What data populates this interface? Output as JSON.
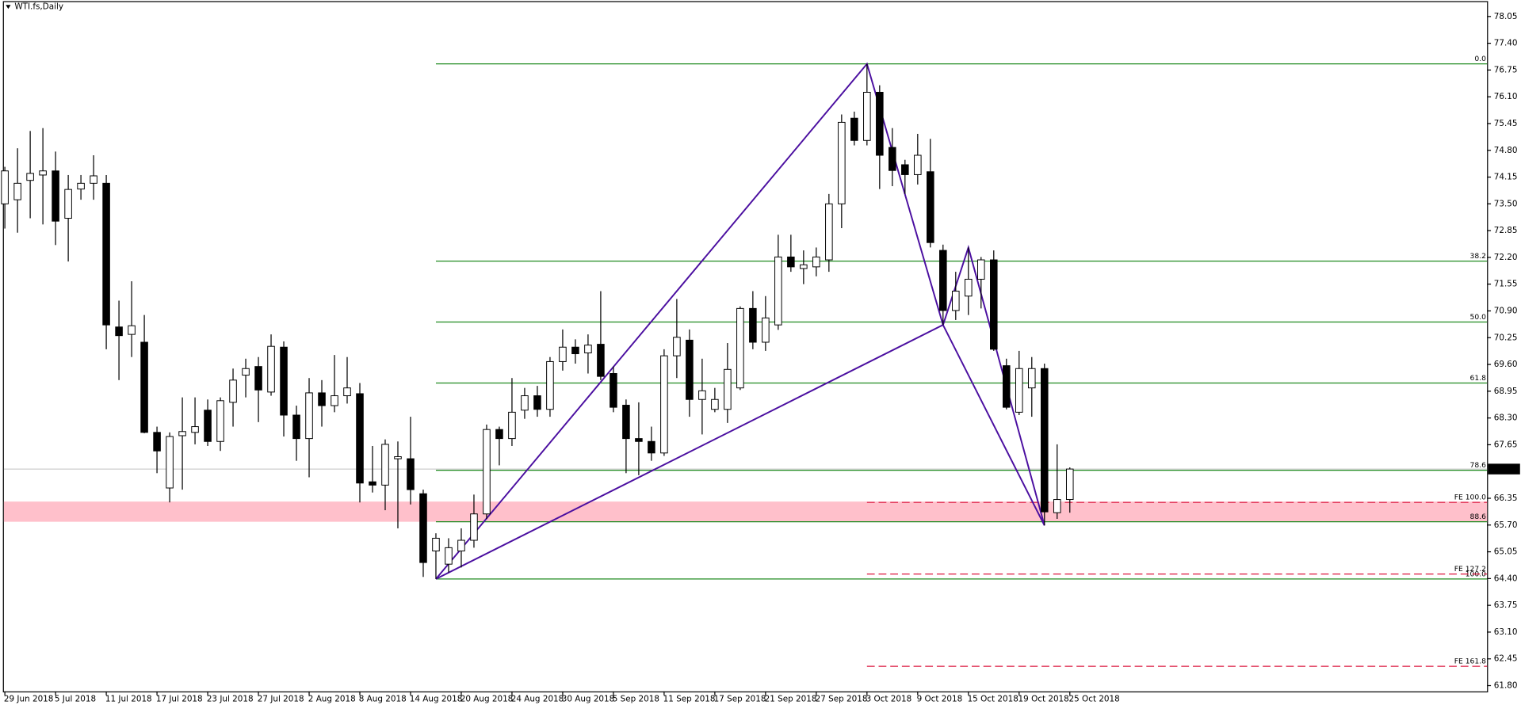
{
  "chart_data": {
    "type": "candlestick",
    "title": "WTI.fs,Daily",
    "categories": [
      "29 Jun 2018",
      null,
      null,
      null,
      "5 Jul 2018",
      null,
      null,
      null,
      "11 Jul 2018",
      null,
      null,
      null,
      "17 Jul 2018",
      null,
      null,
      null,
      "23 Jul 2018",
      null,
      null,
      null,
      "27 Jul 2018",
      null,
      null,
      null,
      "2 Aug 2018",
      null,
      null,
      null,
      "8 Aug 2018",
      null,
      null,
      null,
      "14 Aug 2018",
      null,
      null,
      null,
      "20 Aug 2018",
      null,
      null,
      null,
      "24 Aug 2018",
      null,
      null,
      null,
      "30 Aug 2018",
      null,
      null,
      null,
      "5 Sep 2018",
      null,
      null,
      null,
      "11 Sep 2018",
      null,
      null,
      null,
      "17 Sep 2018",
      null,
      null,
      null,
      "21 Sep 2018",
      null,
      null,
      null,
      "27 Sep 2018",
      null,
      null,
      null,
      "3 Oct 2018",
      null,
      null,
      null,
      "9 Oct 2018",
      null,
      null,
      null,
      "15 Oct 2018",
      null,
      null,
      null,
      "19 Oct 2018",
      null,
      null,
      null,
      "25 Oct 2018"
    ],
    "open": [
      73.5,
      73.6,
      74.07,
      74.2,
      74.3,
      73.15,
      73.86,
      74.0,
      74.0,
      70.51,
      70.33,
      70.14,
      67.95,
      66.6,
      67.87,
      67.95,
      68.49,
      67.73,
      68.68,
      69.34,
      69.55,
      68.93,
      70.02,
      68.37,
      67.8,
      68.91,
      68.6,
      68.84,
      68.89,
      66.75,
      66.67,
      67.31,
      67.31,
      66.46,
      65.07,
      64.75,
      65.07,
      65.33,
      65.97,
      68.02,
      67.8,
      68.49,
      68.84,
      68.51,
      69.67,
      70.02,
      69.88,
      70.09,
      69.38,
      68.61,
      67.8,
      67.73,
      67.45,
      69.81,
      70.19,
      68.75,
      68.51,
      68.51,
      69.03,
      70.96,
      70.14,
      70.56,
      72.21,
      71.93,
      71.97,
      72.14,
      73.5,
      75.58,
      75.04,
      76.21,
      74.87,
      74.45,
      74.21,
      74.28,
      72.37,
      70.91,
      71.26,
      71.67,
      72.14,
      69.57,
      68.44,
      69.03,
      69.5,
      66.0,
      66.32
    ],
    "high": [
      74.4,
      74.85,
      75.27,
      75.34,
      74.77,
      74.2,
      74.2,
      74.68,
      74.2,
      71.15,
      71.62,
      70.8,
      68.09,
      67.95,
      68.8,
      68.8,
      68.75,
      68.8,
      69.5,
      69.74,
      69.78,
      70.33,
      70.16,
      68.6,
      69.27,
      69.22,
      69.83,
      69.78,
      69.15,
      67.62,
      67.78,
      67.73,
      68.33,
      66.56,
      65.5,
      65.38,
      65.62,
      66.44,
      68.14,
      68.09,
      69.27,
      69.03,
      69.08,
      69.78,
      70.45,
      70.21,
      70.33,
      71.38,
      69.55,
      68.75,
      68.68,
      68.09,
      69.97,
      71.19,
      70.45,
      69.74,
      69.03,
      70.12,
      71.01,
      71.38,
      71.26,
      72.75,
      72.75,
      72.37,
      72.44,
      73.74,
      75.67,
      75.74,
      76.9,
      76.38,
      75.34,
      74.57,
      75.2,
      75.08,
      72.51,
      71.85,
      72.44,
      72.21,
      72.37,
      69.74,
      69.93,
      69.78,
      69.62,
      67.66,
      67.1
    ],
    "low": [
      72.9,
      72.8,
      73.15,
      73.0,
      72.5,
      72.1,
      73.6,
      73.6,
      69.97,
      69.22,
      69.78,
      67.93,
      66.96,
      66.25,
      66.56,
      67.66,
      67.62,
      67.5,
      68.09,
      68.8,
      68.2,
      68.84,
      67.85,
      67.26,
      66.86,
      68.09,
      68.44,
      68.65,
      66.25,
      66.49,
      66.06,
      65.62,
      66.2,
      64.44,
      64.39,
      64.55,
      64.67,
      65.15,
      65.85,
      67.15,
      67.62,
      68.28,
      68.33,
      68.33,
      69.45,
      69.62,
      69.38,
      69.22,
      68.44,
      66.96,
      66.91,
      67.26,
      67.38,
      69.27,
      68.33,
      67.9,
      68.44,
      68.18,
      68.98,
      69.97,
      69.93,
      70.44,
      71.85,
      71.55,
      71.74,
      71.85,
      72.91,
      74.92,
      74.92,
      73.86,
      73.93,
      73.74,
      73.97,
      72.44,
      70.56,
      70.68,
      70.8,
      70.96,
      69.93,
      68.51,
      68.37,
      68.33,
      65.69,
      65.85,
      66.0
    ],
    "close": [
      74.3,
      74.0,
      74.24,
      74.3,
      73.08,
      73.85,
      74.0,
      74.18,
      70.56,
      70.3,
      70.54,
      67.95,
      67.5,
      67.85,
      67.97,
      68.09,
      67.73,
      68.72,
      69.22,
      69.5,
      68.98,
      70.04,
      68.37,
      67.8,
      68.91,
      68.6,
      68.84,
      69.03,
      66.72,
      66.67,
      67.66,
      67.36,
      66.56,
      64.79,
      65.38,
      65.15,
      65.33,
      65.97,
      68.02,
      67.8,
      68.44,
      68.84,
      68.51,
      69.67,
      70.02,
      69.86,
      70.07,
      69.31,
      68.56,
      67.8,
      67.73,
      67.45,
      69.81,
      70.26,
      68.75,
      68.96,
      68.75,
      69.48,
      70.96,
      70.14,
      70.73,
      72.21,
      71.97,
      72.02,
      72.21,
      73.5,
      75.48,
      75.04,
      76.21,
      74.68,
      74.31,
      74.21,
      74.68,
      72.56,
      70.91,
      71.38,
      71.67,
      72.14,
      69.97,
      68.56,
      69.5,
      69.5,
      66.02,
      66.32,
      67.06
    ],
    "up_color": "#ffffff",
    "down_color": "#000000",
    "ylim": [
      61.66,
      78.4
    ],
    "yticks": [
      78.05,
      {
        "value": 77.4,
        "label": "77.40"
      },
      76.75,
      {
        "value": 76.1,
        "label": "76.10"
      },
      75.45,
      {
        "value": 74.8,
        "label": "74.80"
      },
      74.15,
      {
        "value": 73.5,
        "label": "73.50"
      },
      72.85,
      {
        "value": 72.2,
        "label": "72.20"
      },
      71.55,
      {
        "value": 70.9,
        "label": "70.90"
      },
      70.25,
      {
        "value": 69.6,
        "label": "69.60"
      },
      68.95,
      {
        "value": 68.3,
        "label": "68.30"
      },
      67.65,
      66.35,
      {
        "value": 65.7,
        "label": "65.70"
      },
      65.05,
      {
        "value": 64.4,
        "label": "64.40"
      },
      63.75,
      {
        "value": 63.1,
        "label": "63.10"
      },
      62.45,
      {
        "value": 61.8,
        "label": "61.80"
      }
    ],
    "last_price": 67.06,
    "zone": [
      65.78,
      66.27
    ],
    "zone_color": "#ffc0cb",
    "pattern": {
      "color": "#4b0fa0",
      "x": [
        34,
        68,
        74,
        76,
        82
      ],
      "y": [
        64.39,
        76.9,
        70.56,
        72.44,
        65.69
      ]
    },
    "fib_color": "#1f8a1f",
    "fib_levels": [
      {
        "label": "0.0",
        "value": 76.9
      },
      {
        "label": "38.2",
        "value": 72.11
      },
      {
        "label": "50.0",
        "value": 70.63
      },
      {
        "label": "61.8",
        "value": 69.15
      },
      {
        "label": "78.6",
        "value": 67.03
      },
      {
        "label": "88.6",
        "value": 65.78
      },
      {
        "label": "100.0",
        "value": 64.39
      }
    ],
    "fe_color": "#dc143c",
    "fe_levels": [
      {
        "label": "FE 100.0",
        "value": 66.25
      },
      {
        "label": "FE 127.2",
        "value": 64.51
      },
      {
        "label": "FE 161.8",
        "value": 62.27
      }
    ]
  }
}
